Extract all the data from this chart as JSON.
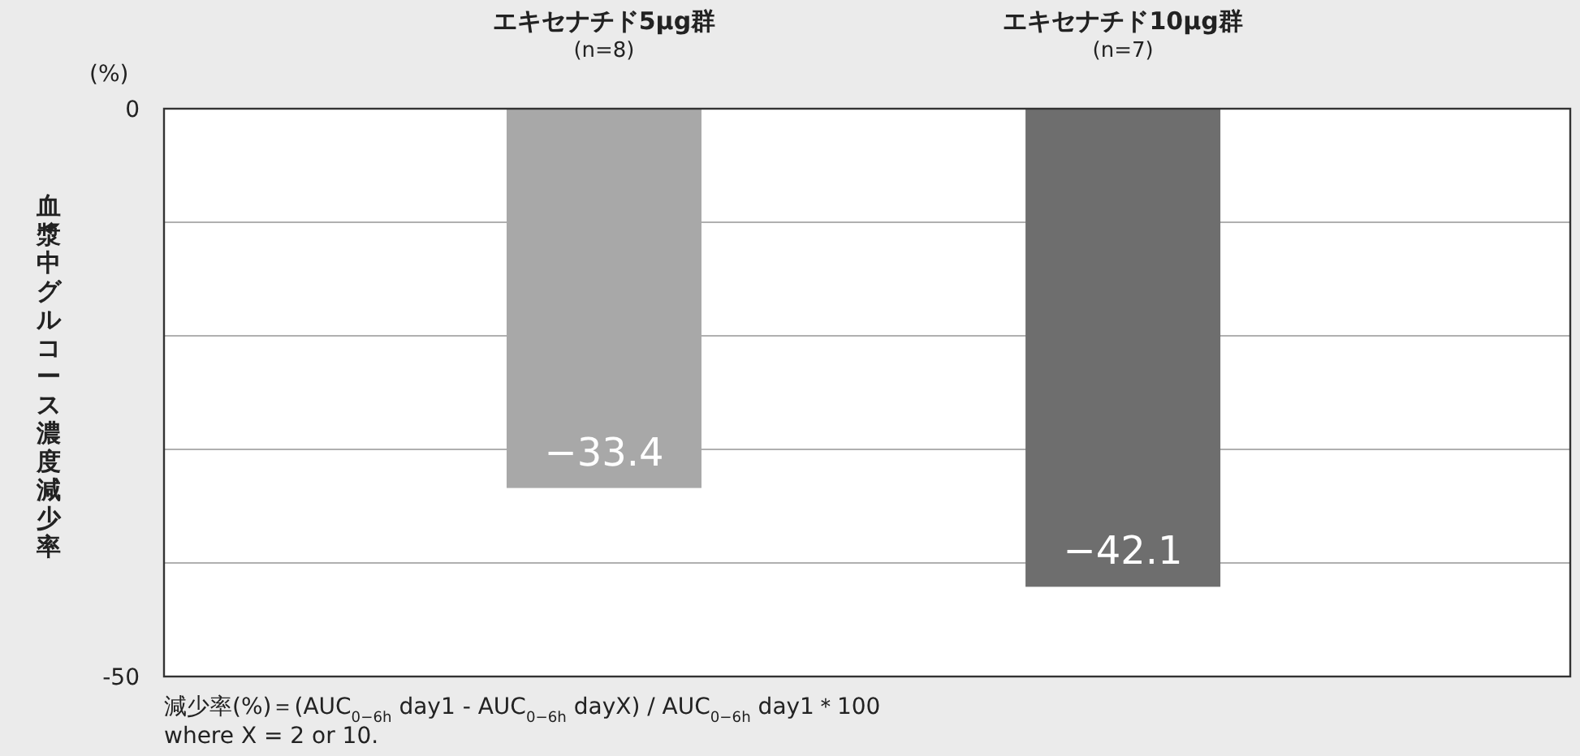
{
  "chart_data": {
    "type": "bar",
    "categories": [
      "エキセナチド5μg群\n(n=8)",
      "エキセナチド10μg群\n(n=7)"
    ],
    "values": [
      -33.4,
      -42.1
    ],
    "colors": [
      "#a8a8a8",
      "#6e6e6e"
    ],
    "value_labels": [
      "−33.4",
      "−42.1"
    ],
    "ylabel": "血漿中グルコース濃度減少率",
    "ylim": [
      -50,
      0
    ],
    "yticks": [
      0,
      {
        "value": -10,
        "label": null
      },
      {
        "value": -20,
        "label": null
      },
      {
        "value": -30,
        "label": null
      },
      {
        "value": -40,
        "label": null
      },
      -50
    ],
    "grid": "y",
    "annotations": [
      "(%)",
      "減少率(%)＝(AUC$_{0−6h}$ day1 - AUC$_{0−6h}$ dayX) / AUC$_{0−6h}$ day1＊100",
      "where X = 2 or 10."
    ]
  }
}
